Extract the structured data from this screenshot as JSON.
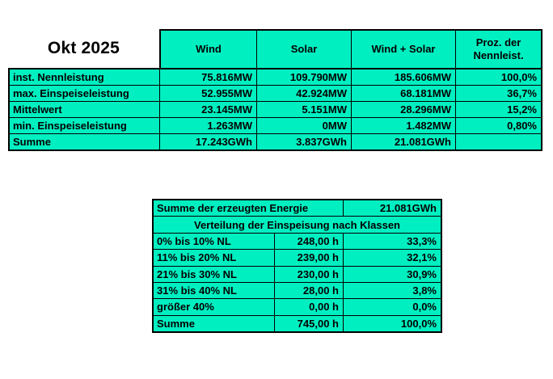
{
  "title": "Okt 2025",
  "colors": {
    "cell_green": "#00efc1",
    "border": "#000000",
    "text": "#000000",
    "background": "#ffffff"
  },
  "top_table": {
    "columns": [
      "Wind",
      "Solar",
      "Wind + Solar",
      "Proz. der Nennleist."
    ],
    "rows": [
      {
        "label": "inst. Nennleistung",
        "wind": "75.816MW",
        "solar": "109.790MW",
        "wind_solar": "185.606MW",
        "pct": "100,0%"
      },
      {
        "label": "max. Einspeiseleistung",
        "wind": "52.955MW",
        "solar": "42.924MW",
        "wind_solar": "68.181MW",
        "pct": "36,7%"
      },
      {
        "label": "Mittelwert",
        "wind": "23.145MW",
        "solar": "5.151MW",
        "wind_solar": "28.296MW",
        "pct": "15,2%"
      },
      {
        "label": "min. Einspeiseleistung",
        "wind": "1.263MW",
        "solar": "0MW",
        "wind_solar": "1.482MW",
        "pct": "0,80%"
      },
      {
        "label": "Summe",
        "wind": "17.243GWh",
        "solar": "3.837GWh",
        "wind_solar": "21.081GWh",
        "pct": ""
      }
    ]
  },
  "bottom_table": {
    "energy_sum_label": "Summe der erzeugten Energie",
    "energy_sum_value": "21.081GWh",
    "distribution_title": "Verteilung der Einspeisung nach Klassen",
    "rows": [
      {
        "label": "0% bis 10% NL",
        "hours": "248,00 h",
        "pct": "33,3%"
      },
      {
        "label": "11% bis 20% NL",
        "hours": "239,00 h",
        "pct": "32,1%"
      },
      {
        "label": "21% bis 30% NL",
        "hours": "230,00 h",
        "pct": "30,9%"
      },
      {
        "label": "31% bis 40% NL",
        "hours": "28,00 h",
        "pct": "3,8%"
      },
      {
        "label": "größer 40%",
        "hours": "0,00 h",
        "pct": "0,0%"
      },
      {
        "label": "Summe",
        "hours": "745,00 h",
        "pct": "100,0%"
      }
    ]
  }
}
